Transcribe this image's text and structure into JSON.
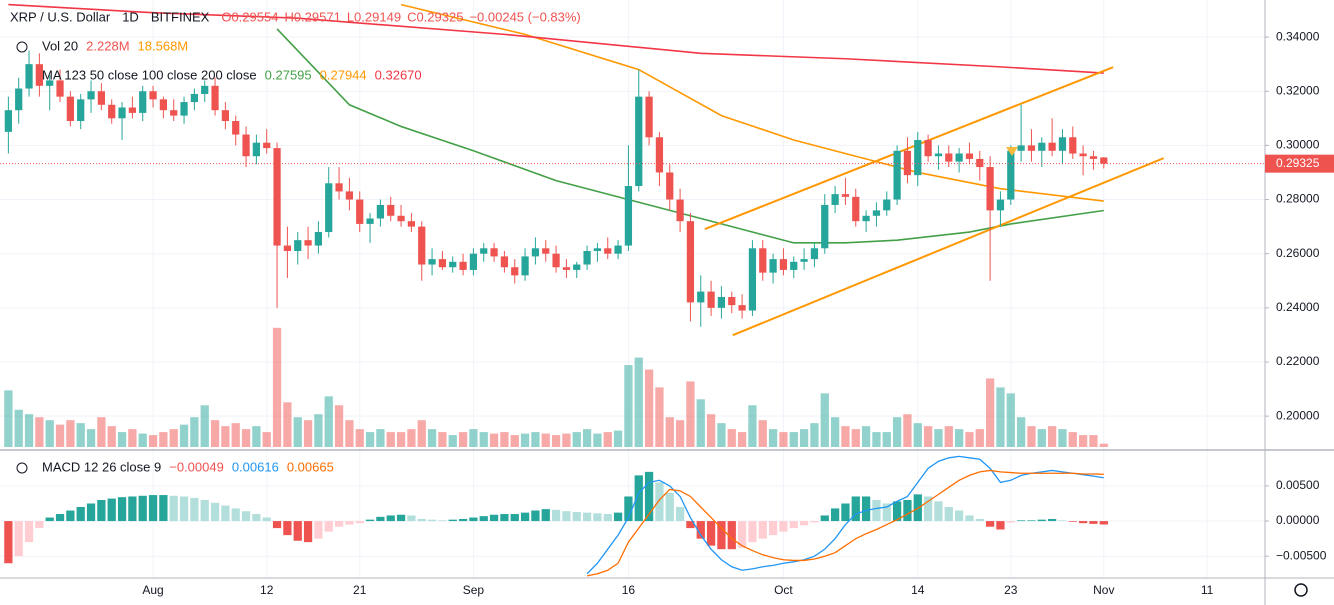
{
  "chart_data": {
    "type": "candlestick",
    "title": "XRP / U.S. Dollar",
    "interval": "1D",
    "exchange": "BITFINEX",
    "ohlc_legend": [
      "O0.29554",
      "H0.29571",
      "L0.29149",
      "C0.29325",
      "−0.00245 (−0.83%)"
    ],
    "up_color": "#26a69a",
    "down_color": "#ef5350",
    "xlim": [
      -0.81,
      121.6
    ],
    "xticks": [
      {
        "value": 14,
        "label": "Aug"
      },
      {
        "value": 25,
        "label": "12"
      },
      {
        "value": 34,
        "label": "21"
      },
      {
        "value": 45,
        "label": "Sep"
      },
      {
        "value": 60,
        "label": "16"
      },
      {
        "value": 75,
        "label": "Oct"
      },
      {
        "value": 88,
        "label": "14"
      },
      {
        "value": 97,
        "label": "23"
      },
      {
        "value": 106,
        "label": "Nov"
      },
      {
        "value": 116,
        "label": "11"
      }
    ],
    "ylim": [
      0.1886,
      0.3537
    ],
    "yticks": [
      {
        "value": 0.2,
        "label": "0.20000"
      },
      {
        "value": 0.22,
        "label": "0.22000"
      },
      {
        "value": 0.24,
        "label": "0.24000"
      },
      {
        "value": 0.26,
        "label": "0.26000"
      },
      {
        "value": 0.28,
        "label": "0.28000"
      },
      {
        "value": 0.3,
        "label": "0.30000"
      },
      {
        "value": 0.32,
        "label": "0.32000"
      },
      {
        "value": 0.34,
        "label": "0.34000"
      }
    ],
    "grid": true,
    "candles": [
      [
        0.305,
        0.318,
        0.297,
        0.313
      ],
      [
        0.313,
        0.325,
        0.308,
        0.321
      ],
      [
        0.321,
        0.335,
        0.318,
        0.33
      ],
      [
        0.33,
        0.334,
        0.318,
        0.322
      ],
      [
        0.322,
        0.326,
        0.313,
        0.324
      ],
      [
        0.324,
        0.328,
        0.316,
        0.318
      ],
      [
        0.318,
        0.32,
        0.307,
        0.309
      ],
      [
        0.309,
        0.319,
        0.306,
        0.317
      ],
      [
        0.317,
        0.324,
        0.312,
        0.32
      ],
      [
        0.32,
        0.323,
        0.313,
        0.315
      ],
      [
        0.315,
        0.317,
        0.308,
        0.31
      ],
      [
        0.31,
        0.316,
        0.302,
        0.314
      ],
      [
        0.314,
        0.318,
        0.31,
        0.312
      ],
      [
        0.312,
        0.322,
        0.309,
        0.32
      ],
      [
        0.32,
        0.322,
        0.314,
        0.317
      ],
      [
        0.317,
        0.318,
        0.31,
        0.313
      ],
      [
        0.313,
        0.317,
        0.309,
        0.311
      ],
      [
        0.311,
        0.318,
        0.308,
        0.316
      ],
      [
        0.316,
        0.321,
        0.313,
        0.319
      ],
      [
        0.319,
        0.324,
        0.316,
        0.322
      ],
      [
        0.322,
        0.325,
        0.311,
        0.313
      ],
      [
        0.313,
        0.316,
        0.306,
        0.309
      ],
      [
        0.309,
        0.311,
        0.3,
        0.304
      ],
      [
        0.304,
        0.307,
        0.292,
        0.296
      ],
      [
        0.296,
        0.304,
        0.293,
        0.301
      ],
      [
        0.301,
        0.306,
        0.297,
        0.299
      ],
      [
        0.299,
        0.301,
        0.24,
        0.263
      ],
      [
        0.263,
        0.27,
        0.251,
        0.261
      ],
      [
        0.261,
        0.268,
        0.256,
        0.265
      ],
      [
        0.265,
        0.27,
        0.258,
        0.263
      ],
      [
        0.263,
        0.272,
        0.26,
        0.268
      ],
      [
        0.268,
        0.292,
        0.266,
        0.286
      ],
      [
        0.286,
        0.292,
        0.28,
        0.283
      ],
      [
        0.283,
        0.288,
        0.276,
        0.28
      ],
      [
        0.28,
        0.283,
        0.268,
        0.271
      ],
      [
        0.271,
        0.275,
        0.264,
        0.273
      ],
      [
        0.273,
        0.28,
        0.27,
        0.278
      ],
      [
        0.278,
        0.281,
        0.272,
        0.274
      ],
      [
        0.274,
        0.278,
        0.27,
        0.272
      ],
      [
        0.272,
        0.275,
        0.268,
        0.27
      ],
      [
        0.27,
        0.272,
        0.25,
        0.256
      ],
      [
        0.256,
        0.262,
        0.252,
        0.258
      ],
      [
        0.258,
        0.261,
        0.254,
        0.255
      ],
      [
        0.255,
        0.259,
        0.253,
        0.257
      ],
      [
        0.257,
        0.26,
        0.252,
        0.254
      ],
      [
        0.254,
        0.262,
        0.252,
        0.26
      ],
      [
        0.26,
        0.264,
        0.257,
        0.262
      ],
      [
        0.262,
        0.264,
        0.257,
        0.259
      ],
      [
        0.259,
        0.261,
        0.253,
        0.255
      ],
      [
        0.255,
        0.258,
        0.249,
        0.252
      ],
      [
        0.252,
        0.262,
        0.25,
        0.259
      ],
      [
        0.259,
        0.266,
        0.256,
        0.262
      ],
      [
        0.262,
        0.265,
        0.257,
        0.26
      ],
      [
        0.26,
        0.263,
        0.253,
        0.255
      ],
      [
        0.255,
        0.258,
        0.251,
        0.254
      ],
      [
        0.254,
        0.257,
        0.251,
        0.256
      ],
      [
        0.256,
        0.263,
        0.254,
        0.261
      ],
      [
        0.261,
        0.264,
        0.257,
        0.262
      ],
      [
        0.262,
        0.266,
        0.258,
        0.26
      ],
      [
        0.26,
        0.265,
        0.258,
        0.263
      ],
      [
        0.263,
        0.3,
        0.261,
        0.285
      ],
      [
        0.285,
        0.328,
        0.283,
        0.318
      ],
      [
        0.318,
        0.32,
        0.3,
        0.303
      ],
      [
        0.303,
        0.305,
        0.285,
        0.29
      ],
      [
        0.29,
        0.293,
        0.276,
        0.28
      ],
      [
        0.28,
        0.284,
        0.268,
        0.272
      ],
      [
        0.272,
        0.275,
        0.235,
        0.242
      ],
      [
        0.242,
        0.252,
        0.233,
        0.246
      ],
      [
        0.246,
        0.25,
        0.237,
        0.24
      ],
      [
        0.24,
        0.248,
        0.236,
        0.244
      ],
      [
        0.244,
        0.246,
        0.238,
        0.241
      ],
      [
        0.241,
        0.245,
        0.236,
        0.239
      ],
      [
        0.239,
        0.265,
        0.237,
        0.262
      ],
      [
        0.262,
        0.265,
        0.25,
        0.253
      ],
      [
        0.253,
        0.26,
        0.249,
        0.258
      ],
      [
        0.258,
        0.262,
        0.252,
        0.254
      ],
      [
        0.254,
        0.259,
        0.251,
        0.257
      ],
      [
        0.257,
        0.262,
        0.254,
        0.258
      ],
      [
        0.258,
        0.264,
        0.255,
        0.262
      ],
      [
        0.262,
        0.282,
        0.26,
        0.278
      ],
      [
        0.278,
        0.285,
        0.275,
        0.282
      ],
      [
        0.282,
        0.288,
        0.278,
        0.281
      ],
      [
        0.281,
        0.284,
        0.27,
        0.272
      ],
      [
        0.272,
        0.276,
        0.268,
        0.274
      ],
      [
        0.274,
        0.279,
        0.27,
        0.276
      ],
      [
        0.276,
        0.283,
        0.274,
        0.28
      ],
      [
        0.28,
        0.3,
        0.278,
        0.298
      ],
      [
        0.298,
        0.303,
        0.286,
        0.289
      ],
      [
        0.289,
        0.305,
        0.285,
        0.302
      ],
      [
        0.302,
        0.304,
        0.294,
        0.296
      ],
      [
        0.296,
        0.3,
        0.291,
        0.297
      ],
      [
        0.297,
        0.3,
        0.292,
        0.294
      ],
      [
        0.294,
        0.299,
        0.29,
        0.297
      ],
      [
        0.297,
        0.301,
        0.293,
        0.295
      ],
      [
        0.295,
        0.298,
        0.287,
        0.292
      ],
      [
        0.292,
        0.296,
        0.25,
        0.276
      ],
      [
        0.276,
        0.283,
        0.27,
        0.28
      ],
      [
        0.28,
        0.3,
        0.278,
        0.298
      ],
      [
        0.298,
        0.315,
        0.294,
        0.3
      ],
      [
        0.3,
        0.306,
        0.294,
        0.298
      ],
      [
        0.298,
        0.303,
        0.292,
        0.301
      ],
      [
        0.301,
        0.31,
        0.296,
        0.298
      ],
      [
        0.298,
        0.306,
        0.293,
        0.303
      ],
      [
        0.303,
        0.307,
        0.295,
        0.297
      ],
      [
        0.297,
        0.3,
        0.289,
        0.296
      ],
      [
        0.296,
        0.298,
        0.291,
        0.295
      ],
      [
        0.29554,
        0.29571,
        0.29149,
        0.29325
      ]
    ],
    "volume": {
      "name": "Vol 20",
      "legend_values": [
        "2.228M",
        "18.568M"
      ],
      "ylim": [
        0,
        300
      ],
      "values": [
        38,
        25,
        22,
        20,
        18,
        15,
        18,
        16,
        12,
        20,
        14,
        10,
        12,
        9,
        8,
        10,
        12,
        15,
        20,
        28,
        18,
        14,
        16,
        12,
        14,
        10,
        80,
        30,
        20,
        18,
        22,
        34,
        28,
        18,
        12,
        10,
        12,
        10,
        10,
        12,
        18,
        12,
        10,
        8,
        10,
        12,
        10,
        9,
        10,
        8,
        9,
        10,
        9,
        8,
        9,
        10,
        12,
        9,
        10,
        11,
        55,
        60,
        52,
        40,
        20,
        18,
        44,
        32,
        22,
        16,
        12,
        10,
        28,
        18,
        12,
        10,
        10,
        12,
        16,
        36,
        20,
        14,
        12,
        14,
        10,
        10,
        20,
        22,
        16,
        14,
        12,
        14,
        12,
        10,
        12,
        46,
        40,
        36,
        20,
        14,
        12,
        14,
        12,
        10,
        8,
        8,
        2.228
      ]
    },
    "ma_legend": "MA 123 50 close 100 close 200 close",
    "ma_legend_values": [
      "0.27595",
      "0.27944",
      "0.32670"
    ],
    "moving_averages": [
      {
        "color": "#43a047",
        "x": [
          26,
          33,
          38,
          45,
          53,
          61,
          69,
          76,
          81,
          86,
          93,
          97,
          106
        ],
        "values": [
          0.343,
          0.315,
          0.307,
          0.298,
          0.287,
          0.279,
          0.271,
          0.264,
          0.264,
          0.265,
          0.268,
          0.271,
          0.27595
        ]
      },
      {
        "color": "#ff9800",
        "x": [
          38,
          50,
          61,
          69,
          76,
          82,
          88,
          96,
          106
        ],
        "values": [
          0.352,
          0.341,
          0.328,
          0.311,
          0.302,
          0.296,
          0.29,
          0.284,
          0.27944
        ]
      },
      {
        "color": "#f23645",
        "x": [
          0,
          14,
          28,
          48,
          67,
          81,
          96,
          106
        ],
        "values": [
          0.352,
          0.349,
          0.347,
          0.341,
          0.334,
          0.332,
          0.329,
          0.3267
        ]
      }
    ],
    "trendlines": [
      {
        "color": "#ff9800",
        "x": [
          67.4,
          106.9
        ],
        "values": [
          0.2691,
          0.3289
        ]
      },
      {
        "color": "#ff9800",
        "x": [
          70.1,
          111.8
        ],
        "values": [
          0.2299,
          0.2953
        ]
      }
    ],
    "macd": {
      "name": "MACD 12 26 close 9",
      "legend_values": [
        "−0.00049",
        "0.00616",
        "0.00665"
      ],
      "ylim": [
        -0.0081,
        0.0094
      ],
      "yticks": [
        {
          "value": -0.005,
          "label": "−0.00500"
        },
        {
          "value": 0,
          "label": "0.00000"
        },
        {
          "value": 0.005,
          "label": "0.00500"
        }
      ],
      "macd_color": "#2196f3",
      "signal_color": "#ff6d00",
      "histogram": [
        -0.006,
        -0.005,
        -0.003,
        -0.001,
        0.0005,
        0.001,
        0.0015,
        0.002,
        0.0025,
        0.003,
        0.0032,
        0.0034,
        0.0035,
        0.0036,
        0.0037,
        0.0037,
        0.0036,
        0.0035,
        0.0033,
        0.003,
        0.0026,
        0.0022,
        0.0018,
        0.0014,
        0.001,
        0.0005,
        -0.001,
        -0.002,
        -0.0028,
        -0.003,
        -0.0025,
        -0.0015,
        -0.0008,
        -0.0005,
        -0.0003,
        0.0002,
        0.0006,
        0.0008,
        0.0009,
        0.0008,
        0.0003,
        0.0002,
        0.0001,
        0.0002,
        0.0003,
        0.0005,
        0.0007,
        0.0009,
        0.001,
        0.001,
        0.0012,
        0.0015,
        0.0017,
        0.0016,
        0.0014,
        0.0013,
        0.0012,
        0.0011,
        0.001,
        0.0012,
        0.0035,
        0.0065,
        0.007,
        0.0055,
        0.004,
        0.002,
        -0.001,
        -0.0025,
        -0.0035,
        -0.004,
        -0.004,
        -0.0038,
        -0.003,
        -0.0025,
        -0.002,
        -0.0015,
        -0.001,
        -0.0006,
        -0.0002,
        0.0008,
        0.0018,
        0.0025,
        0.0035,
        0.0035,
        0.003,
        0.0025,
        0.0028,
        0.003,
        0.0038,
        0.0035,
        0.0028,
        0.002,
        0.0015,
        0.0008,
        0.0003,
        -0.0008,
        -0.0012,
        -0.0002,
        0.0001,
        0.0001,
        0.0002,
        0.0003,
        0.0001,
        -0.0001,
        -0.0003,
        -0.0004,
        -0.00049
      ],
      "macd": [
        null,
        null,
        null,
        null,
        null,
        null,
        null,
        null,
        null,
        null,
        null,
        null,
        null,
        null,
        null,
        null,
        null,
        null,
        null,
        null,
        null,
        null,
        null,
        null,
        null,
        null,
        null,
        null,
        null,
        null,
        null,
        null,
        null,
        null,
        null,
        null,
        null,
        null,
        null,
        null,
        null,
        null,
        null,
        null,
        null,
        null,
        null,
        null,
        null,
        null,
        null,
        null,
        null,
        null,
        null,
        null,
        -0.0075,
        -0.006,
        -0.004,
        -0.002,
        0.0005,
        0.004,
        0.0055,
        0.0058,
        0.005,
        0.0035,
        0.0005,
        -0.002,
        -0.004,
        -0.0055,
        -0.0065,
        -0.007,
        -0.0068,
        -0.0065,
        -0.0063,
        -0.006,
        -0.0058,
        -0.0055,
        -0.005,
        -0.004,
        -0.0025,
        -0.0005,
        0.001,
        0.0015,
        0.0018,
        0.002,
        0.0028,
        0.0035,
        0.0055,
        0.0075,
        0.0085,
        0.009,
        0.0092,
        0.009,
        0.0088,
        0.0075,
        0.0055,
        0.0058,
        0.0065,
        0.0068,
        0.007,
        0.0072,
        0.007,
        0.0068,
        0.0066,
        0.0064,
        0.00616
      ],
      "signal": [
        null,
        null,
        null,
        null,
        null,
        null,
        null,
        null,
        null,
        null,
        null,
        null,
        null,
        null,
        null,
        null,
        null,
        null,
        null,
        null,
        null,
        null,
        null,
        null,
        null,
        null,
        null,
        null,
        null,
        null,
        null,
        null,
        null,
        null,
        null,
        null,
        null,
        null,
        null,
        null,
        null,
        null,
        null,
        null,
        null,
        null,
        null,
        null,
        null,
        null,
        null,
        null,
        null,
        null,
        null,
        null,
        -0.0078,
        -0.0075,
        -0.007,
        -0.006,
        -0.003,
        -0.001,
        0.001,
        0.003,
        0.0045,
        0.0043,
        0.0035,
        0.002,
        0.0005,
        -0.001,
        -0.0025,
        -0.0035,
        -0.0042,
        -0.0048,
        -0.0052,
        -0.0055,
        -0.0056,
        -0.0056,
        -0.0054,
        -0.005,
        -0.0045,
        -0.0035,
        -0.0025,
        -0.0018,
        -0.0012,
        -0.0005,
        0.0002,
        0.001,
        0.0018,
        0.0028,
        0.0038,
        0.0048,
        0.0058,
        0.0065,
        0.007,
        0.0072,
        0.007,
        0.0069,
        0.0068,
        0.0068,
        0.0068,
        0.0068,
        0.0068,
        0.0068,
        0.0067,
        0.0067,
        0.00665
      ]
    }
  }
}
